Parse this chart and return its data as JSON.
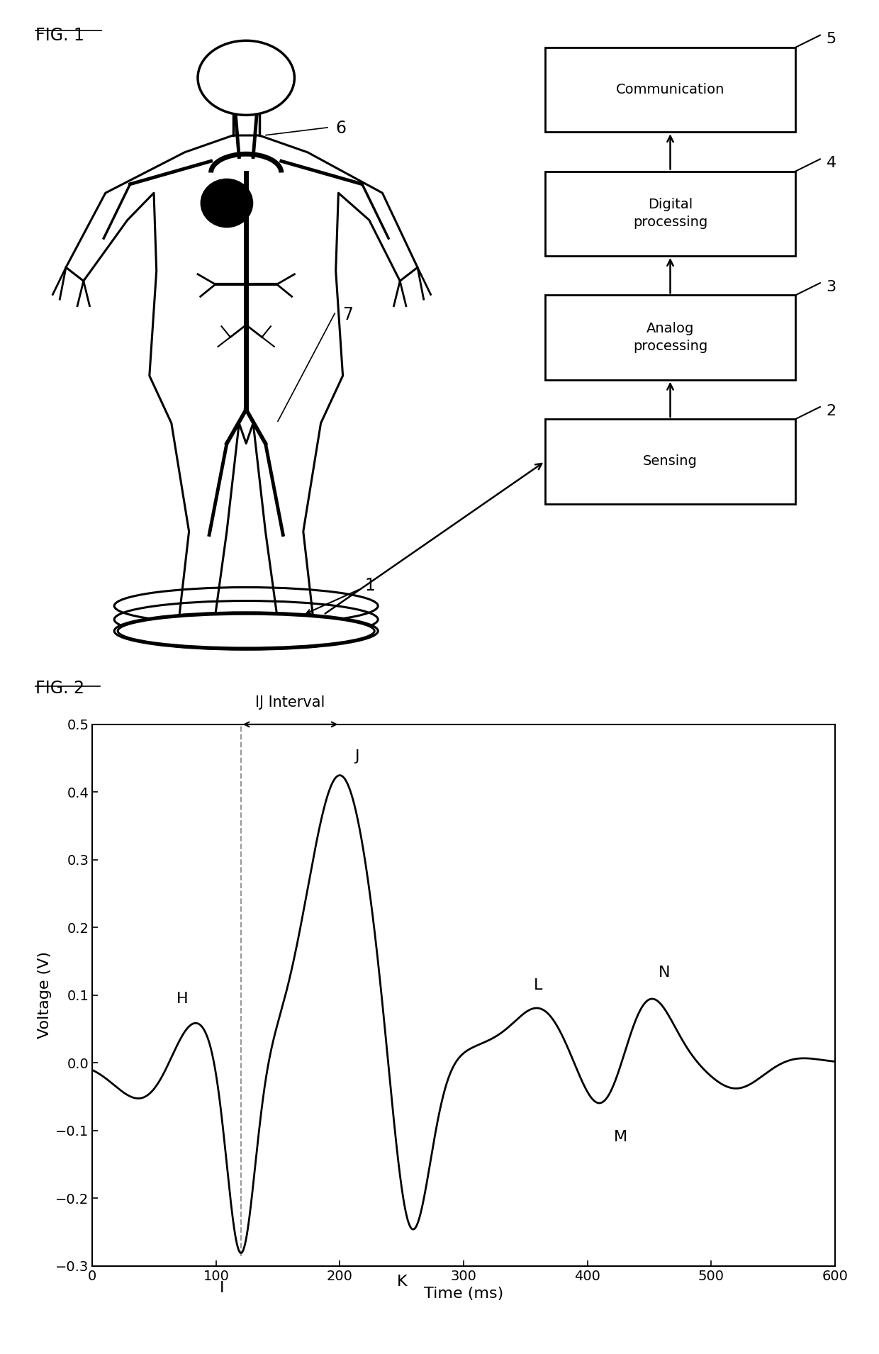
{
  "fig1_label": "FIG. 1",
  "fig2_label": "FIG. 2",
  "box_labels": [
    "Communication",
    "Digital\nprocessing",
    "Analog\nprocessing",
    "Sensing"
  ],
  "box_numbers": [
    "5",
    "4",
    "3",
    "2"
  ],
  "ij_label": "IJ Interval",
  "xlabel": "Time (ms)",
  "ylabel": "Voltage (V)",
  "ylim": [
    -0.3,
    0.5
  ],
  "xlim": [
    0,
    600
  ],
  "yticks": [
    -0.3,
    -0.2,
    -0.1,
    0.0,
    0.1,
    0.2,
    0.3,
    0.4,
    0.5
  ],
  "xticks": [
    0,
    100,
    200,
    300,
    400,
    500,
    600
  ],
  "fiducial_points": {
    "H": {
      "t": 85,
      "v": 0.04
    },
    "I": {
      "t": 120,
      "v": -0.285
    },
    "J": {
      "t": 200,
      "v": 0.415
    },
    "K": {
      "t": 255,
      "v": -0.275
    },
    "L": {
      "t": 360,
      "v": 0.065
    },
    "M": {
      "t": 415,
      "v": -0.07
    },
    "N": {
      "t": 450,
      "v": 0.095
    }
  },
  "line_color": "#000000",
  "dashed_color": "#888888",
  "background_color": "#ffffff"
}
